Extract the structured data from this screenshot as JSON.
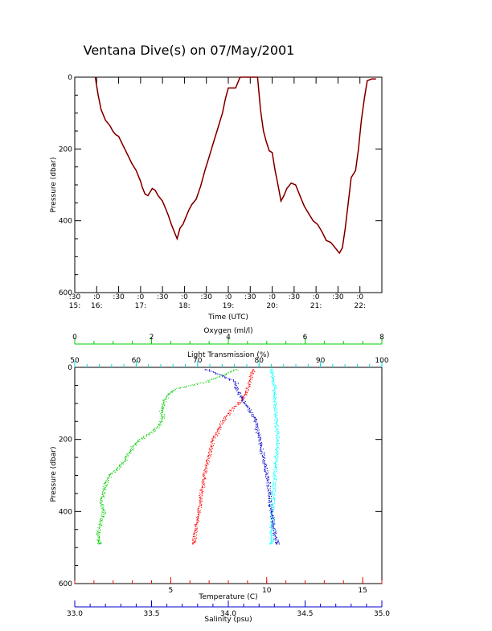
{
  "title": "Ventana Dive(s) on 07/May/2001",
  "colors": {
    "axis": "#000000",
    "pressure_trace": "#000000",
    "pressure_trace_highlight": "#ff0000",
    "oxygen": "#00cc00",
    "light_transmission": "#00ffff",
    "temperature": "#ff0000",
    "salinity": "#0000cc"
  },
  "chart_data": [
    {
      "type": "line",
      "ylabel": "Pressure (dbar)",
      "xlabel": "Time (UTC)",
      "ylim": [
        600,
        0
      ],
      "y_ticks": [
        0,
        200,
        400,
        600
      ],
      "x_minutes_range": [
        930,
        1350
      ],
      "x_ticks": [
        {
          "minutes": 930,
          "top": ":30",
          "bottom": "15:"
        },
        {
          "minutes": 960,
          "top": ":0",
          "bottom": "16:"
        },
        {
          "minutes": 990,
          "top": ":30",
          "bottom": ""
        },
        {
          "minutes": 1020,
          "top": ":0",
          "bottom": "17:"
        },
        {
          "minutes": 1050,
          "top": ":30",
          "bottom": ""
        },
        {
          "minutes": 1080,
          "top": ":0",
          "bottom": "18:"
        },
        {
          "minutes": 1110,
          "top": ":30",
          "bottom": ""
        },
        {
          "minutes": 1140,
          "top": ":0",
          "bottom": "19:"
        },
        {
          "minutes": 1170,
          "top": ":30",
          "bottom": ""
        },
        {
          "minutes": 1200,
          "top": ":0",
          "bottom": "20:"
        },
        {
          "minutes": 1230,
          "top": ":30",
          "bottom": ""
        },
        {
          "minutes": 1260,
          "top": ":0",
          "bottom": "21:"
        },
        {
          "minutes": 1290,
          "top": ":30",
          "bottom": ""
        },
        {
          "minutes": 1320,
          "top": ":0",
          "bottom": "22:"
        }
      ],
      "series": [
        {
          "x_minutes": [
            958,
            962,
            966,
            972,
            978,
            982,
            986,
            990,
            996,
            1002,
            1008,
            1014,
            1018,
            1020,
            1022,
            1026,
            1030,
            1036,
            1040,
            1044,
            1048,
            1050,
            1054,
            1058,
            1062,
            1066,
            1070,
            1074,
            1078,
            1082,
            1086,
            1090,
            1096,
            1102,
            1108,
            1114,
            1120,
            1126,
            1132,
            1136,
            1140,
            1150,
            1156,
            1160,
            1164,
            1166,
            1168,
            1170,
            1172,
            1174,
            1176,
            1178,
            1180,
            1184,
            1188,
            1192,
            1196,
            1200,
            1204,
            1208,
            1212,
            1216,
            1220,
            1226,
            1232,
            1238,
            1244,
            1250,
            1256,
            1262,
            1268,
            1274,
            1280,
            1284,
            1288,
            1292,
            1296,
            1300,
            1304,
            1308,
            1314,
            1318,
            1322,
            1326,
            1330,
            1336,
            1342
          ],
          "y_dbar": [
            0,
            50,
            90,
            120,
            135,
            150,
            160,
            165,
            190,
            215,
            240,
            260,
            280,
            290,
            305,
            325,
            330,
            310,
            315,
            330,
            340,
            345,
            365,
            385,
            410,
            430,
            450,
            420,
            410,
            390,
            370,
            355,
            340,
            305,
            260,
            220,
            180,
            140,
            100,
            60,
            30,
            30,
            0,
            0,
            0,
            0,
            0,
            0,
            0,
            0,
            0,
            0,
            0,
            90,
            150,
            180,
            205,
            210,
            260,
            300,
            345,
            330,
            310,
            295,
            300,
            330,
            360,
            380,
            400,
            410,
            430,
            455,
            460,
            470,
            480,
            490,
            475,
            420,
            350,
            280,
            260,
            200,
            120,
            60,
            10,
            5,
            5
          ],
          "color": "#000000"
        }
      ]
    },
    {
      "type": "scatter",
      "ylabel": "Pressure (dbar)",
      "ylim": [
        600,
        0
      ],
      "y_ticks": [
        0,
        200,
        400,
        600
      ],
      "axes": [
        {
          "key": "oxygen",
          "label": "Oxygen (ml/l)",
          "range": [
            0,
            8
          ],
          "ticks": [
            0,
            2,
            4,
            6,
            8
          ],
          "tick_labels": [
            "0",
            "2",
            "4",
            "6",
            "8"
          ],
          "position": "top"
        },
        {
          "key": "light_transmission",
          "label": "Light Transmission (%)",
          "range": [
            50,
            100
          ],
          "ticks": [
            50,
            60,
            70,
            80,
            90,
            100
          ],
          "tick_labels": [
            "50",
            "60",
            "70",
            "80",
            "90",
            "100"
          ],
          "position": "top"
        },
        {
          "key": "temperature",
          "label": "Temperature (C)",
          "range": [
            0,
            16
          ],
          "ticks": [
            5,
            10,
            15
          ],
          "tick_labels": [
            "5",
            "10",
            "15"
          ],
          "position": "bottom"
        },
        {
          "key": "salinity",
          "label": "Salinity (psu)",
          "range": [
            33.0,
            35.0
          ],
          "ticks": [
            33.0,
            33.5,
            34.0,
            34.5,
            35.0
          ],
          "tick_labels": [
            "33.0",
            "33.5",
            "34.0",
            "34.5",
            "35.0"
          ],
          "position": "bottom"
        }
      ],
      "series": [
        {
          "key": "oxygen",
          "color": "#00cc00",
          "pressure": [
            5,
            20,
            40,
            60,
            80,
            100,
            120,
            140,
            160,
            180,
            200,
            220,
            240,
            260,
            280,
            300,
            320,
            340,
            360,
            380,
            400,
            420,
            440,
            460,
            480,
            490
          ],
          "value": [
            4.2,
            3.9,
            3.4,
            2.6,
            2.4,
            2.3,
            2.25,
            2.3,
            2.2,
            2.0,
            1.7,
            1.5,
            1.4,
            1.3,
            1.1,
            0.9,
            0.8,
            0.75,
            0.7,
            0.7,
            0.75,
            0.7,
            0.65,
            0.6,
            0.6,
            0.65
          ]
        },
        {
          "key": "light_transmission",
          "color": "#00ffff",
          "pressure": [
            5,
            20,
            40,
            60,
            80,
            100,
            120,
            140,
            160,
            180,
            200,
            220,
            240,
            260,
            280,
            300,
            320,
            340,
            360,
            380,
            400,
            420,
            440,
            460,
            480,
            490
          ],
          "value": [
            82.0,
            82.2,
            82.3,
            82.5,
            82.5,
            82.6,
            82.6,
            82.7,
            82.8,
            82.9,
            83.0,
            83.0,
            82.8,
            82.7,
            82.6,
            82.5,
            82.4,
            82.3,
            82.2,
            82.2,
            82.1,
            82.1,
            82.0,
            82.0,
            82.0,
            82.0
          ]
        },
        {
          "key": "temperature",
          "color": "#ff0000",
          "pressure": [
            5,
            20,
            40,
            60,
            80,
            100,
            120,
            140,
            160,
            180,
            200,
            220,
            240,
            260,
            280,
            300,
            320,
            340,
            360,
            380,
            400,
            420,
            440,
            460,
            480,
            490
          ],
          "value": [
            9.3,
            9.2,
            9.1,
            9.0,
            8.8,
            8.5,
            8.1,
            7.8,
            7.6,
            7.4,
            7.2,
            7.1,
            7.0,
            6.9,
            6.8,
            6.75,
            6.7,
            6.6,
            6.55,
            6.5,
            6.45,
            6.4,
            6.3,
            6.25,
            6.2,
            6.2
          ]
        },
        {
          "key": "salinity",
          "color": "#0000cc",
          "pressure": [
            5,
            20,
            40,
            60,
            80,
            100,
            120,
            140,
            160,
            180,
            200,
            220,
            240,
            260,
            280,
            300,
            320,
            340,
            360,
            380,
            400,
            420,
            440,
            460,
            480,
            490
          ],
          "value": [
            33.85,
            33.95,
            34.05,
            34.05,
            34.08,
            34.11,
            34.14,
            34.17,
            34.18,
            34.19,
            34.2,
            34.21,
            34.22,
            34.23,
            34.24,
            34.25,
            34.26,
            34.26,
            34.27,
            34.27,
            34.28,
            34.29,
            34.29,
            34.3,
            34.31,
            34.32
          ]
        }
      ]
    }
  ]
}
